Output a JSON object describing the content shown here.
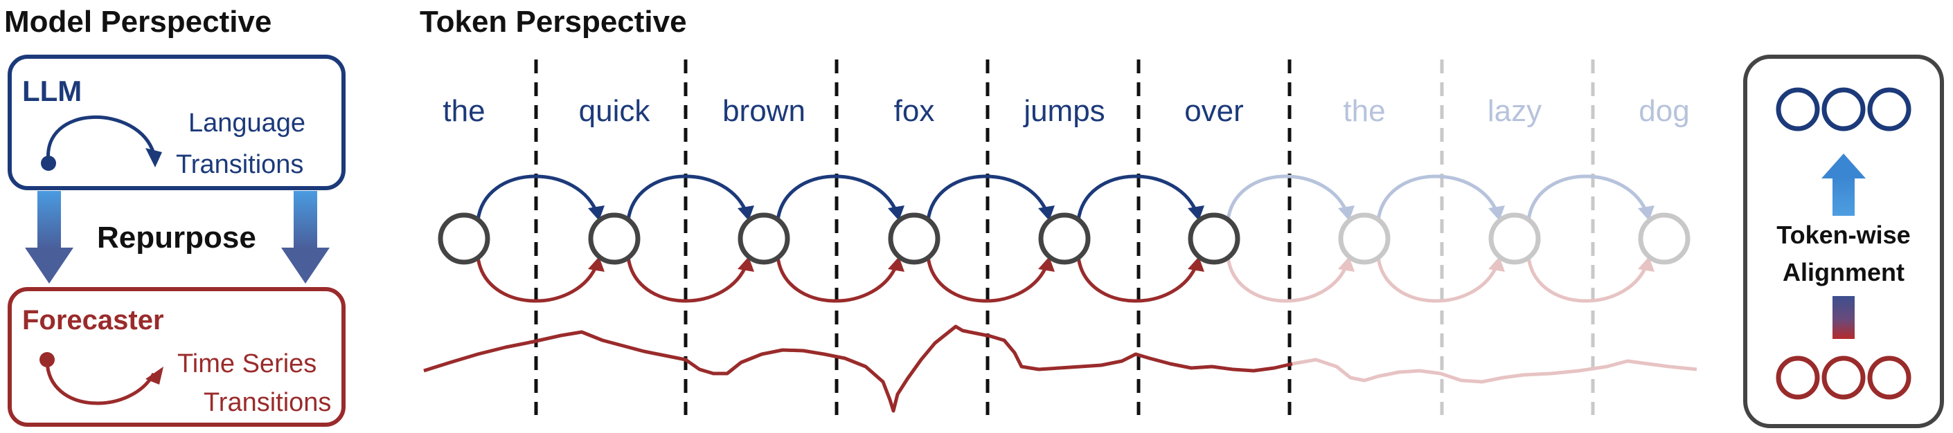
{
  "model_perspective": {
    "title": "Model Perspective",
    "llm_label": "LLM",
    "llm_caption": [
      "Language",
      "Transitions"
    ],
    "repurpose_label": "Repurpose",
    "forecaster_label": "Forecaster",
    "forecaster_caption": [
      "Time Series",
      "Transitions"
    ]
  },
  "token_perspective": {
    "title": "Token Perspective",
    "tokens": [
      "the",
      "quick",
      "brown",
      "fox",
      "jumps",
      "over",
      "the",
      "lazy",
      "dog"
    ],
    "active_count": 6
  },
  "alignment": {
    "label": [
      "Token-wise",
      "Alignment"
    ]
  },
  "colors": {
    "language_blue": "#1c3a7a",
    "series_red": "#9a2b2b",
    "node_dark": "#444444",
    "faded_blue": "#b7c3dc",
    "faded_red": "#e7c3c3",
    "faded_node": "#c8c8c8",
    "arrow_blue": "#3e8fd6"
  }
}
